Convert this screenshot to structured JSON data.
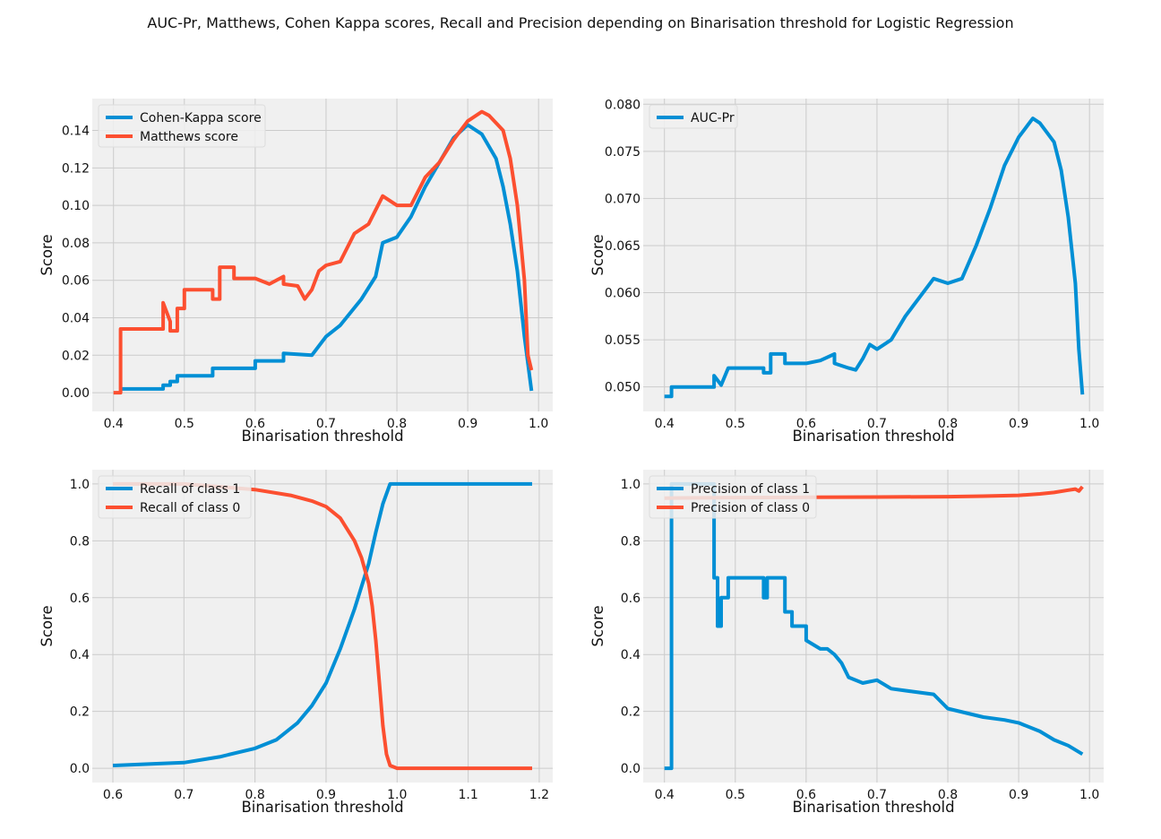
{
  "suptitle": "AUC-Pr, Matthews, Cohen Kappa scores, Recall and Precision depending on Binarisation threshold for Logistic Regression",
  "colors": {
    "blue": "#008fd5",
    "red": "#fc4f30",
    "panel_bg": "#f0f0f0",
    "grid": "#cbcbcb"
  },
  "chart_data": [
    {
      "type": "line",
      "xlabel": "Binarisation threshold",
      "ylabel": "Score",
      "xlim": [
        0.37,
        1.02
      ],
      "ylim": [
        -0.01,
        0.157
      ],
      "xticks": [
        0.4,
        0.5,
        0.6,
        0.7,
        0.8,
        0.9,
        1.0
      ],
      "xtick_labels": [
        "0.4",
        "0.5",
        "0.6",
        "0.7",
        "0.8",
        "0.9",
        "1.0"
      ],
      "yticks": [
        0.0,
        0.02,
        0.04,
        0.06,
        0.08,
        0.1,
        0.12,
        0.14
      ],
      "ytick_labels": [
        "0.00",
        "0.02",
        "0.04",
        "0.06",
        "0.08",
        "0.10",
        "0.12",
        "0.14"
      ],
      "legend": "top-left",
      "grid": true,
      "series": [
        {
          "name": "Cohen-Kappa score",
          "color": "#008fd5",
          "x": [
            0.41,
            0.47,
            0.47,
            0.48,
            0.48,
            0.49,
            0.49,
            0.54,
            0.54,
            0.6,
            0.6,
            0.64,
            0.64,
            0.68,
            0.7,
            0.72,
            0.75,
            0.77,
            0.78,
            0.8,
            0.82,
            0.84,
            0.86,
            0.88,
            0.9,
            0.92,
            0.94,
            0.95,
            0.96,
            0.97,
            0.98,
            0.99
          ],
          "y": [
            0.002,
            0.002,
            0.004,
            0.004,
            0.006,
            0.006,
            0.009,
            0.009,
            0.013,
            0.013,
            0.017,
            0.017,
            0.021,
            0.02,
            0.03,
            0.036,
            0.05,
            0.062,
            0.08,
            0.083,
            0.094,
            0.11,
            0.123,
            0.136,
            0.143,
            0.138,
            0.125,
            0.11,
            0.09,
            0.065,
            0.03,
            0.001
          ]
        },
        {
          "name": "Matthews score",
          "color": "#fc4f30",
          "x": [
            0.4,
            0.41,
            0.41,
            0.47,
            0.47,
            0.48,
            0.48,
            0.49,
            0.49,
            0.5,
            0.5,
            0.54,
            0.54,
            0.55,
            0.55,
            0.57,
            0.57,
            0.6,
            0.62,
            0.64,
            0.64,
            0.66,
            0.67,
            0.68,
            0.69,
            0.7,
            0.72,
            0.74,
            0.76,
            0.78,
            0.8,
            0.82,
            0.84,
            0.86,
            0.88,
            0.9,
            0.92,
            0.93,
            0.95,
            0.96,
            0.97,
            0.98,
            0.985,
            0.99
          ],
          "y": [
            0.0,
            0.0,
            0.034,
            0.034,
            0.048,
            0.038,
            0.033,
            0.033,
            0.045,
            0.045,
            0.055,
            0.055,
            0.05,
            0.05,
            0.067,
            0.067,
            0.061,
            0.061,
            0.058,
            0.062,
            0.058,
            0.057,
            0.05,
            0.055,
            0.065,
            0.068,
            0.07,
            0.085,
            0.09,
            0.105,
            0.1,
            0.1,
            0.115,
            0.123,
            0.135,
            0.145,
            0.15,
            0.148,
            0.14,
            0.125,
            0.1,
            0.06,
            0.02,
            0.012
          ]
        }
      ]
    },
    {
      "type": "line",
      "xlabel": "Binarisation threshold",
      "ylabel": "Score",
      "xlim": [
        0.37,
        1.02
      ],
      "ylim": [
        0.0474,
        0.0806
      ],
      "xticks": [
        0.4,
        0.5,
        0.6,
        0.7,
        0.8,
        0.9,
        1.0
      ],
      "xtick_labels": [
        "0.4",
        "0.5",
        "0.6",
        "0.7",
        "0.8",
        "0.9",
        "1.0"
      ],
      "yticks": [
        0.05,
        0.055,
        0.06,
        0.065,
        0.07,
        0.075,
        0.08
      ],
      "ytick_labels": [
        "0.050",
        "0.055",
        "0.060",
        "0.065",
        "0.070",
        "0.075",
        "0.080"
      ],
      "legend": "top-left",
      "grid": true,
      "series": [
        {
          "name": "AUC-Pr",
          "color": "#008fd5",
          "x": [
            0.4,
            0.41,
            0.41,
            0.47,
            0.47,
            0.48,
            0.48,
            0.49,
            0.49,
            0.54,
            0.54,
            0.55,
            0.55,
            0.57,
            0.57,
            0.6,
            0.62,
            0.64,
            0.64,
            0.66,
            0.67,
            0.68,
            0.69,
            0.7,
            0.72,
            0.74,
            0.76,
            0.78,
            0.8,
            0.82,
            0.84,
            0.86,
            0.88,
            0.9,
            0.92,
            0.93,
            0.95,
            0.96,
            0.97,
            0.98,
            0.985,
            0.99
          ],
          "y": [
            0.049,
            0.049,
            0.05,
            0.05,
            0.0512,
            0.0502,
            0.0502,
            0.052,
            0.052,
            0.052,
            0.0515,
            0.0515,
            0.0535,
            0.0535,
            0.0525,
            0.0525,
            0.0528,
            0.0535,
            0.0525,
            0.052,
            0.0518,
            0.053,
            0.0545,
            0.054,
            0.055,
            0.0575,
            0.0595,
            0.0615,
            0.061,
            0.0615,
            0.065,
            0.069,
            0.0735,
            0.0765,
            0.0785,
            0.078,
            0.076,
            0.073,
            0.068,
            0.061,
            0.054,
            0.0492
          ]
        }
      ]
    },
    {
      "type": "line",
      "xlabel": "Binarisation threshold",
      "ylabel": "Score",
      "xlim": [
        0.571,
        1.219
      ],
      "ylim": [
        -0.05,
        1.05
      ],
      "xticks": [
        0.6,
        0.7,
        0.8,
        0.9,
        1.0,
        1.1,
        1.2
      ],
      "xtick_labels": [
        "0.6",
        "0.7",
        "0.8",
        "0.9",
        "1.0",
        "1.1",
        "1.2"
      ],
      "yticks": [
        0.0,
        0.2,
        0.4,
        0.6,
        0.8,
        1.0
      ],
      "ytick_labels": [
        "0.0",
        "0.2",
        "0.4",
        "0.6",
        "0.8",
        "1.0"
      ],
      "legend": "top-left",
      "grid": true,
      "series": [
        {
          "name": "Recall of class 1",
          "color": "#008fd5",
          "x": [
            0.6,
            0.65,
            0.7,
            0.75,
            0.8,
            0.83,
            0.86,
            0.88,
            0.9,
            0.92,
            0.94,
            0.96,
            0.97,
            0.98,
            0.99,
            1.0,
            1.19
          ],
          "y": [
            0.01,
            0.015,
            0.02,
            0.04,
            0.07,
            0.1,
            0.16,
            0.22,
            0.3,
            0.42,
            0.56,
            0.72,
            0.83,
            0.93,
            1.0,
            1.0,
            1.0
          ]
        },
        {
          "name": "Recall of class 0",
          "color": "#fc4f30",
          "x": [
            0.6,
            0.7,
            0.75,
            0.8,
            0.85,
            0.88,
            0.9,
            0.92,
            0.94,
            0.95,
            0.96,
            0.965,
            0.97,
            0.975,
            0.98,
            0.985,
            0.99,
            1.0,
            1.19
          ],
          "y": [
            1.0,
            1.0,
            0.99,
            0.98,
            0.96,
            0.94,
            0.92,
            0.88,
            0.8,
            0.74,
            0.65,
            0.57,
            0.45,
            0.3,
            0.15,
            0.05,
            0.01,
            0.0,
            0.0
          ]
        }
      ]
    },
    {
      "type": "line",
      "xlabel": "Binarisation threshold",
      "ylabel": "Score",
      "xlim": [
        0.37,
        1.02
      ],
      "ylim": [
        -0.05,
        1.05
      ],
      "xticks": [
        0.4,
        0.5,
        0.6,
        0.7,
        0.8,
        0.9,
        1.0
      ],
      "xtick_labels": [
        "0.4",
        "0.5",
        "0.6",
        "0.7",
        "0.8",
        "0.9",
        "1.0"
      ],
      "yticks": [
        0.0,
        0.2,
        0.4,
        0.6,
        0.8,
        1.0
      ],
      "ytick_labels": [
        "0.0",
        "0.2",
        "0.4",
        "0.6",
        "0.8",
        "1.0"
      ],
      "legend": "top-left",
      "grid": true,
      "series": [
        {
          "name": "Precision of class 1",
          "color": "#008fd5",
          "x": [
            0.4,
            0.41,
            0.41,
            0.47,
            0.47,
            0.475,
            0.475,
            0.48,
            0.48,
            0.49,
            0.49,
            0.54,
            0.54,
            0.545,
            0.545,
            0.57,
            0.57,
            0.58,
            0.58,
            0.6,
            0.6,
            0.62,
            0.63,
            0.64,
            0.65,
            0.66,
            0.68,
            0.7,
            0.72,
            0.75,
            0.78,
            0.8,
            0.85,
            0.88,
            0.9,
            0.93,
            0.95,
            0.97,
            0.99
          ],
          "y": [
            0.0,
            0.0,
            1.0,
            1.0,
            0.67,
            0.67,
            0.5,
            0.5,
            0.6,
            0.6,
            0.67,
            0.67,
            0.6,
            0.6,
            0.67,
            0.67,
            0.55,
            0.55,
            0.5,
            0.5,
            0.45,
            0.42,
            0.42,
            0.4,
            0.37,
            0.32,
            0.3,
            0.31,
            0.28,
            0.27,
            0.26,
            0.21,
            0.18,
            0.17,
            0.16,
            0.13,
            0.1,
            0.08,
            0.05
          ]
        },
        {
          "name": "Precision of class 0",
          "color": "#fc4f30",
          "x": [
            0.4,
            0.5,
            0.6,
            0.7,
            0.8,
            0.85,
            0.9,
            0.93,
            0.95,
            0.97,
            0.98,
            0.985,
            0.99
          ],
          "y": [
            0.95,
            0.952,
            0.953,
            0.954,
            0.955,
            0.957,
            0.96,
            0.965,
            0.97,
            0.978,
            0.982,
            0.975,
            0.99
          ]
        }
      ]
    }
  ]
}
